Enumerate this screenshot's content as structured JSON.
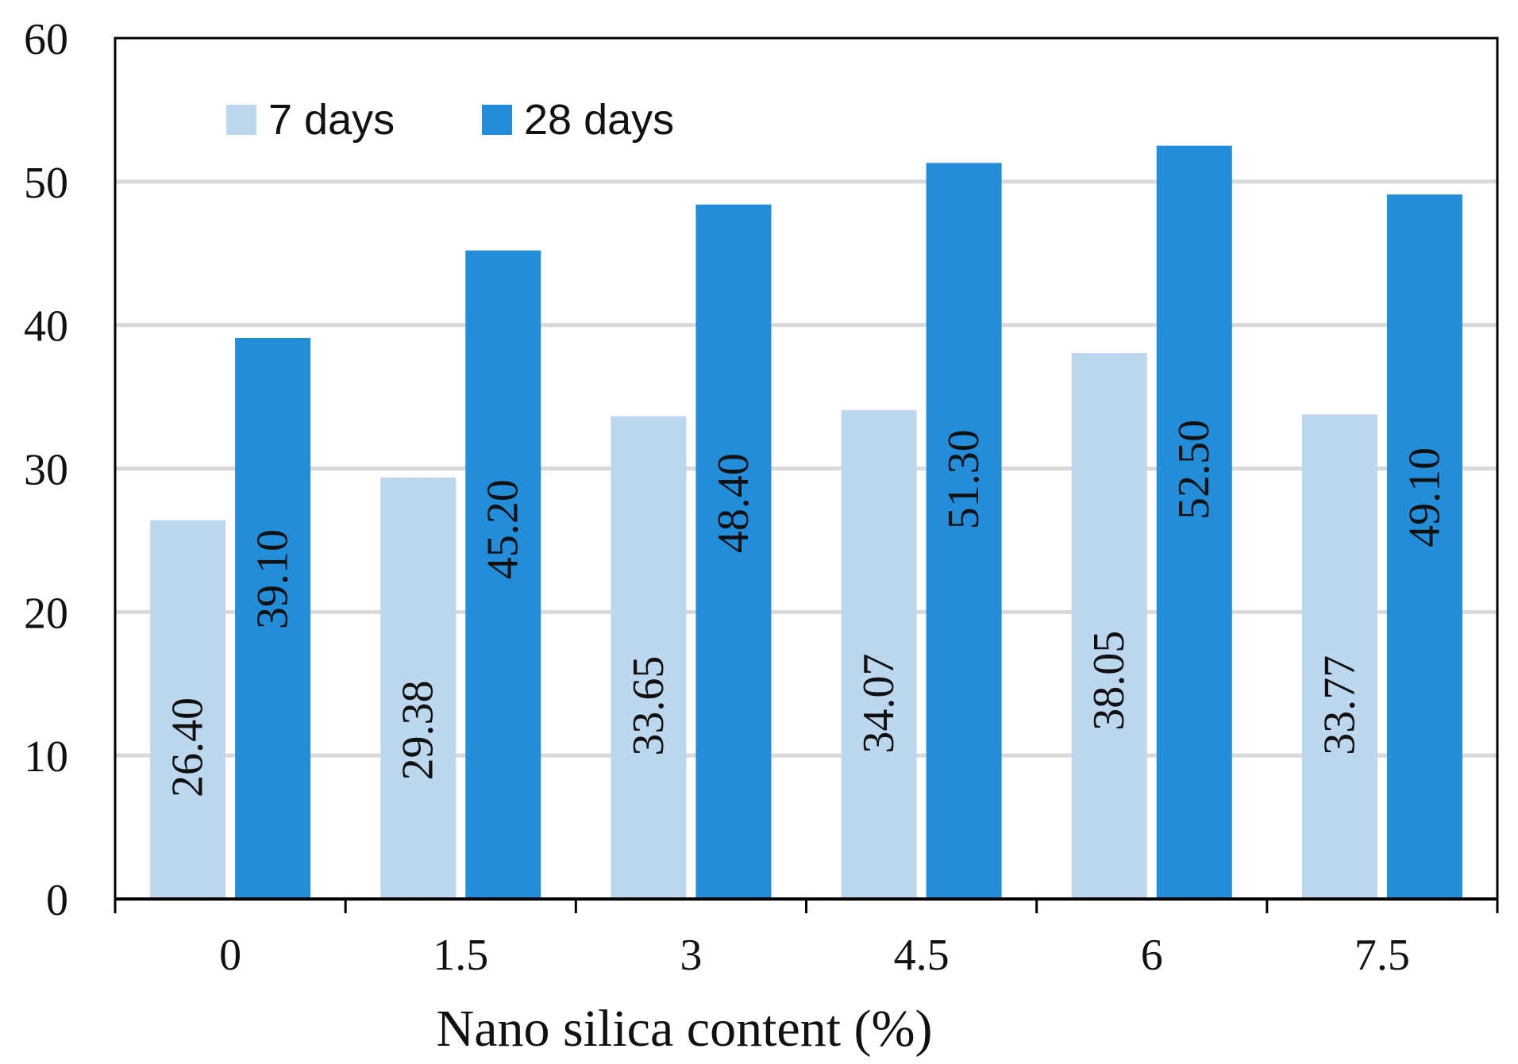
{
  "chart_data": {
    "type": "bar",
    "title": "",
    "xlabel": "Nano silica content (%)",
    "ylabel": "",
    "categories": [
      "0",
      "1.5",
      "3",
      "4.5",
      "6",
      "7.5"
    ],
    "series": [
      {
        "name": "7 days",
        "values": [
          26.4,
          29.38,
          33.65,
          34.07,
          38.05,
          33.77
        ],
        "labels": [
          "26.40",
          "29.38",
          "33.65",
          "34.07",
          "38.05",
          "33.77"
        ],
        "color": "#BDD7EE"
      },
      {
        "name": "28 days",
        "values": [
          39.1,
          45.2,
          48.4,
          51.3,
          52.5,
          49.1
        ],
        "labels": [
          "39.10",
          "45.20",
          "48.40",
          "51.30",
          "52.50",
          "49.10"
        ],
        "color": "#228DD8"
      }
    ],
    "ylim": [
      0,
      60
    ],
    "yticks": [
      0,
      10,
      20,
      30,
      40,
      50,
      60
    ],
    "ytick_labels": [
      "0",
      "10",
      "20",
      "30",
      "40",
      "50",
      "60"
    ],
    "grid": true,
    "grid_color": "#D9D9D9",
    "legend_position": "top-left",
    "data_label_orientation": "vertical"
  }
}
